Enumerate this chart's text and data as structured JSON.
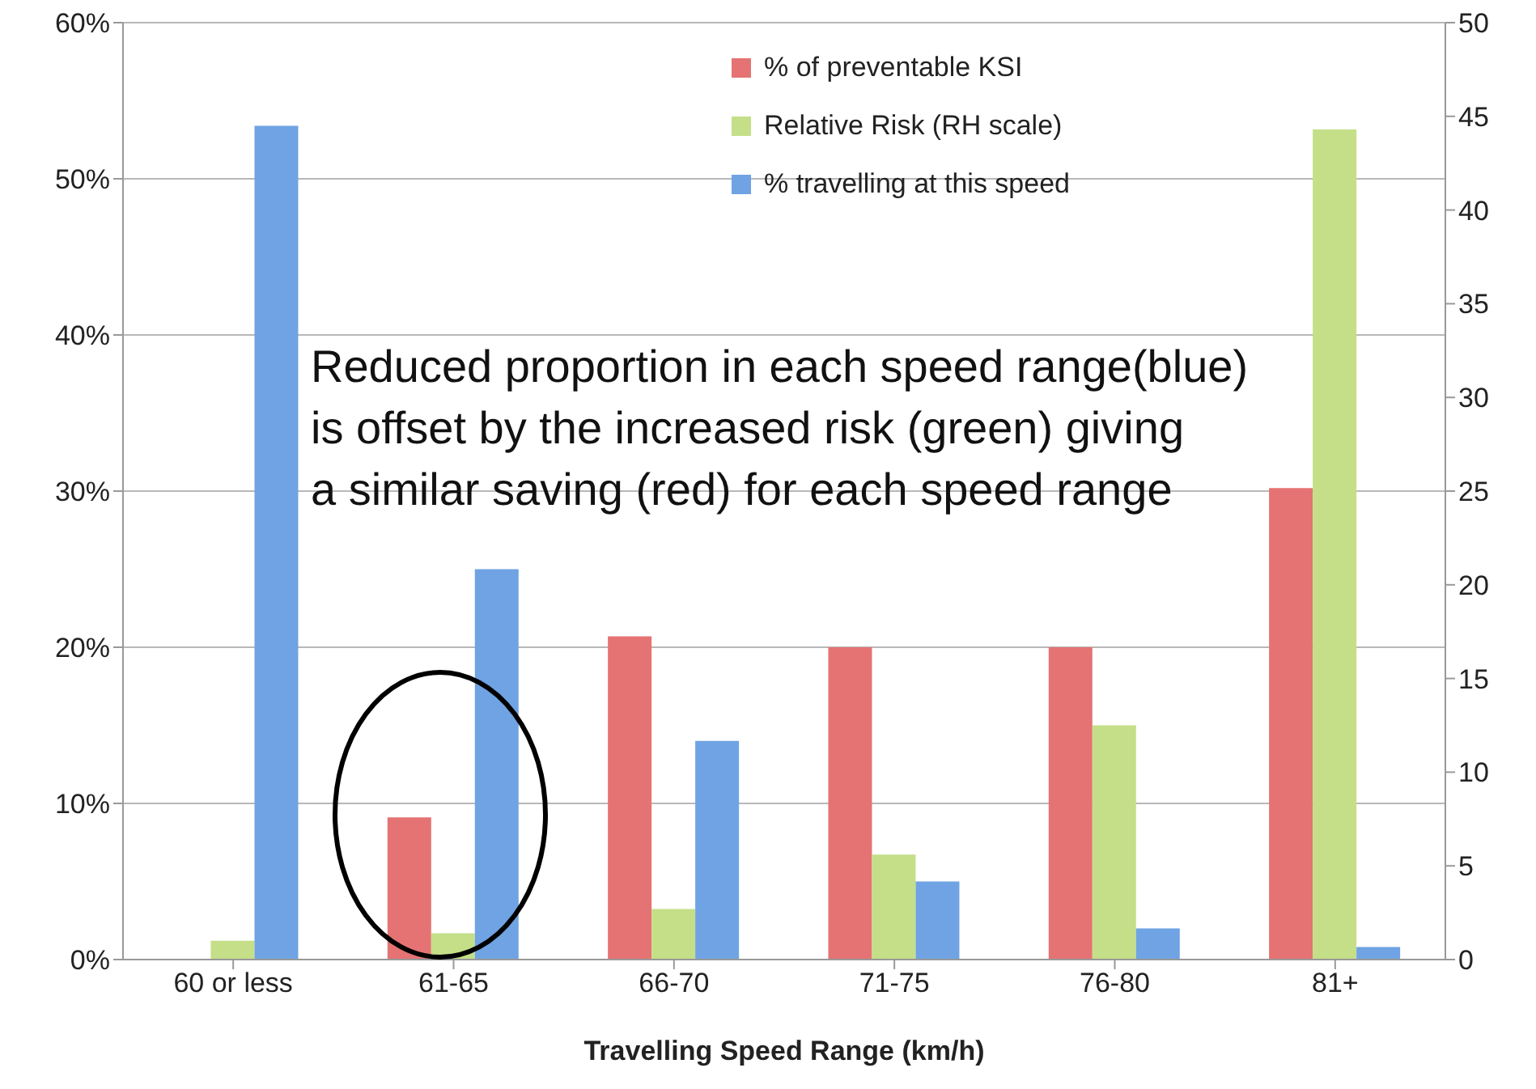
{
  "chart_data": {
    "type": "bar",
    "xlabel": "Travelling Speed Range (km/h)",
    "categories": [
      "60 or less",
      "61-65",
      "66-70",
      "71-75",
      "76-80",
      "81+"
    ],
    "series": [
      {
        "name": "% of preventable KSI",
        "color": "#e57373",
        "values": [
          0,
          9.1,
          20.7,
          20,
          20,
          30.2
        ]
      },
      {
        "name": "Relative Risk (RH scale)",
        "color": "#c4df88",
        "axis": "y2",
        "values": [
          1,
          1.4,
          2.7,
          5.6,
          12.5,
          44.3
        ]
      },
      {
        "name": "% travelling at this speed",
        "color": "#6fa3e3",
        "values": [
          53.4,
          25,
          14,
          5,
          2,
          0.8
        ]
      }
    ],
    "ylim": [
      0,
      60
    ],
    "yticks": [
      {
        "value": 0,
        "label": "0%"
      },
      {
        "value": 10,
        "label": "10%"
      },
      {
        "value": 20,
        "label": "20%"
      },
      {
        "value": 30,
        "label": "30%"
      },
      {
        "value": 40,
        "label": "40%"
      },
      {
        "value": 50,
        "label": "50%"
      },
      {
        "value": 60,
        "label": "60%"
      }
    ],
    "y2lim": [
      0,
      50
    ],
    "y2ticks": [
      0,
      5,
      10,
      15,
      20,
      25,
      30,
      35,
      40,
      45,
      50
    ],
    "grid": "y",
    "legend": "top right",
    "annotations": [
      "Reduced proportion in each speed range(blue)\nis offset by the increased risk (green) giving\na similar saving (red) for each speed range"
    ]
  }
}
